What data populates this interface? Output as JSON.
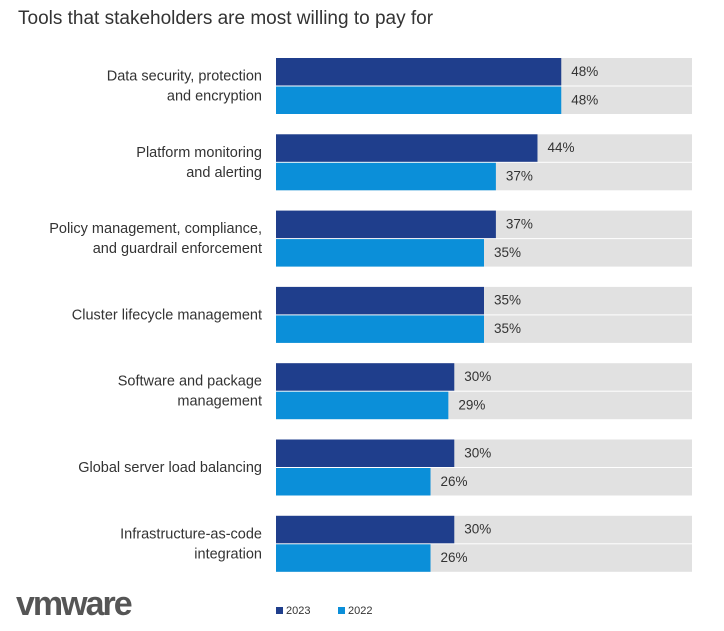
{
  "chart_data": {
    "type": "bar",
    "orientation": "horizontal",
    "title": "Tools that stakeholders are most willing to pay for",
    "categories": [
      "Data security, protection\nand encryption",
      "Platform monitoring\nand alerting",
      "Policy management, compliance,\nand guardrail enforcement",
      "Cluster lifecycle management",
      "Software and package\nmanagement",
      "Global server load balancing",
      "Infrastructure-as-code\nintegration"
    ],
    "series": [
      {
        "name": "2023",
        "color": "#1f3e8c",
        "values": [
          48,
          44,
          37,
          35,
          30,
          30,
          30
        ],
        "value_labels": [
          "48%",
          "44%",
          "37%",
          "35%",
          "30%",
          "30%",
          "30%"
        ]
      },
      {
        "name": "2022",
        "color": "#0b8fd9",
        "values": [
          48,
          37,
          35,
          35,
          29,
          26,
          26
        ],
        "value_labels": [
          "48%",
          "37%",
          "35%",
          "35%",
          "29%",
          "26%",
          "26%"
        ]
      }
    ],
    "xlim": [
      0,
      70
    ],
    "track_color": "#e1e1e1",
    "legend": "bottom",
    "logo": "vmware"
  }
}
